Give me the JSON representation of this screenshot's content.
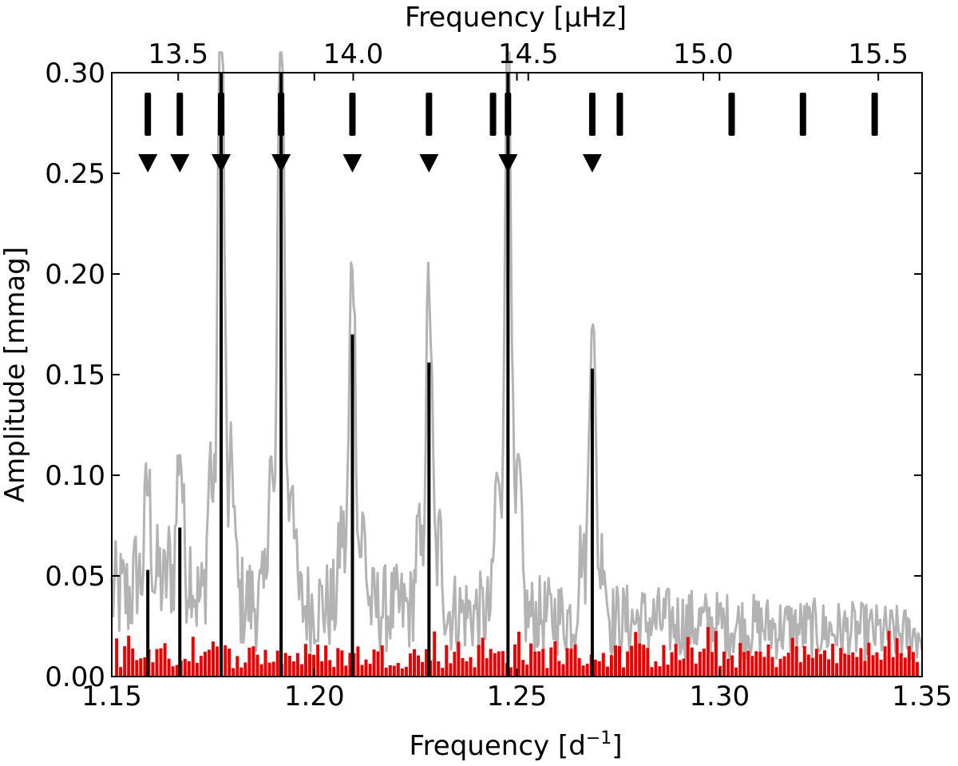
{
  "chart_data": {
    "type": "line",
    "xlabel_bottom": "Frequency [d",
    "xlabel_bottom_exp": "−1",
    "xlabel_bottom_close": "]",
    "xlabel_top": "Frequency [μHz]",
    "ylabel": "Amplitude [mmag]",
    "xlim": [
      1.15,
      1.35
    ],
    "ylim": [
      0.0,
      0.3
    ],
    "x_ticks": [
      1.15,
      1.2,
      1.25,
      1.3,
      1.35
    ],
    "x_tick_labels": [
      "1.15",
      "1.20",
      "1.25",
      "1.30",
      "1.35"
    ],
    "y_ticks": [
      0.0,
      0.05,
      0.1,
      0.15,
      0.2,
      0.25,
      0.3
    ],
    "y_tick_labels": [
      "0.00",
      "0.05",
      "0.10",
      "0.15",
      "0.20",
      "0.25",
      "0.30"
    ],
    "top_ticks_uhz": [
      13.5,
      14.0,
      14.5,
      15.0,
      15.5
    ],
    "top_tick_labels": [
      "13.5",
      "14.0",
      "14.5",
      "15.0",
      "15.5"
    ],
    "grid": false,
    "colors": {
      "periodogram": "#b3b3b3",
      "residual": "#ee0000",
      "peaks": "#000000"
    },
    "black_peaks": [
      {
        "x": 1.1589,
        "y": 0.053
      },
      {
        "x": 1.1668,
        "y": 0.074
      },
      {
        "x": 1.177,
        "y": 0.31
      },
      {
        "x": 1.1918,
        "y": 0.31
      },
      {
        "x": 1.2094,
        "y": 0.17
      },
      {
        "x": 1.2283,
        "y": 0.156
      },
      {
        "x": 1.2478,
        "y": 0.31
      },
      {
        "x": 1.2686,
        "y": 0.153
      }
    ],
    "markers_bars_x": [
      1.1589,
      1.1668,
      1.177,
      1.1918,
      1.2094,
      1.2283,
      1.2441,
      1.2478,
      1.2686,
      1.2754,
      1.303,
      1.3206,
      1.3383
    ],
    "markers_triangles_x": [
      1.1589,
      1.1668,
      1.177,
      1.1918,
      1.2094,
      1.2283,
      1.2478,
      1.2686
    ]
  }
}
